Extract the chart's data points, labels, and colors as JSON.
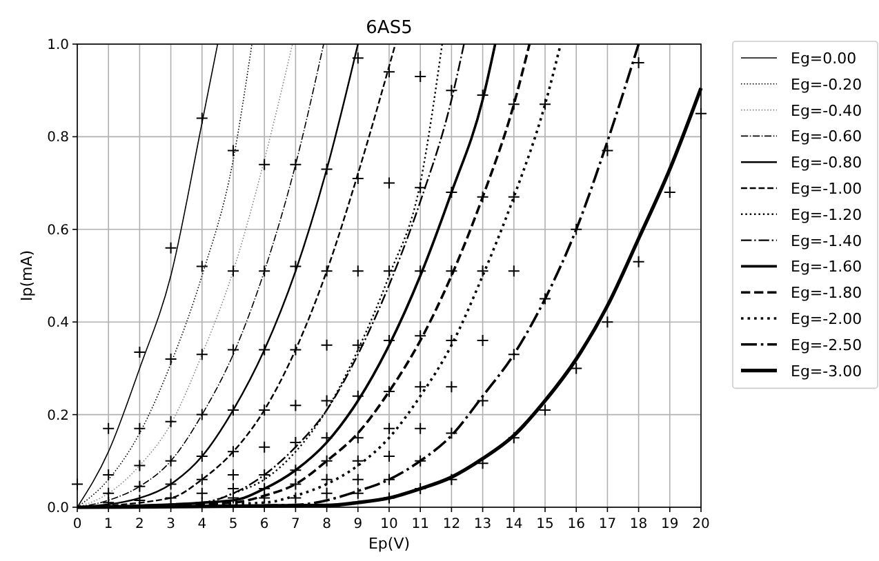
{
  "chart_data": {
    "type": "line",
    "title": "6AS5",
    "xlabel": "Ep(V)",
    "ylabel": "Ip(mA)",
    "xlim": [
      0,
      20
    ],
    "xticks": [
      0,
      1,
      2,
      3,
      4,
      5,
      6,
      7,
      8,
      9,
      10,
      11,
      12,
      13,
      14,
      15,
      16,
      17,
      18,
      19,
      20
    ],
    "ylim": [
      0,
      1
    ],
    "yticks": [
      {
        "value": 0,
        "label": "0.0"
      },
      {
        "value": 0.2,
        "label": "0.2"
      },
      {
        "value": 0.4,
        "label": "0.4"
      },
      {
        "value": 0.6,
        "label": "0.6"
      },
      {
        "value": 0.8,
        "label": "0.8"
      },
      {
        "value": 1,
        "label": "1.0"
      }
    ],
    "grid": true,
    "legend": "right",
    "marker": "none",
    "series": [
      {
        "name": "Eg=0.00",
        "color": "#000000",
        "line_style": "solid",
        "x": [
          0,
          1,
          2,
          3,
          4,
          4.5
        ],
        "values": [
          0,
          0.12,
          0.3,
          0.5,
          0.83,
          1
        ]
      },
      {
        "name": "Eg=-0.20",
        "color": "#000000",
        "line_style": "dotted",
        "x": [
          0,
          1,
          2,
          3,
          4,
          5,
          5.6
        ],
        "values": [
          0,
          0.06,
          0.16,
          0.31,
          0.5,
          0.75,
          1
        ]
      },
      {
        "name": "Eg=-0.40",
        "color": "#888888",
        "line_style": "dotted",
        "x": [
          0,
          1,
          2,
          3,
          4,
          5,
          6,
          6.9
        ],
        "values": [
          0,
          0.03,
          0.09,
          0.18,
          0.33,
          0.51,
          0.75,
          1
        ]
      },
      {
        "name": "Eg=-0.60",
        "color": "#000000",
        "line_style": "dashdot",
        "x": [
          0,
          1,
          2,
          3,
          4,
          5,
          6,
          7,
          7.9
        ],
        "values": [
          0,
          0.015,
          0.045,
          0.1,
          0.2,
          0.33,
          0.51,
          0.74,
          1
        ]
      },
      {
        "name": "Eg=-0.80",
        "color": "#000000",
        "line_style": "solid",
        "x": [
          0,
          2,
          3,
          4,
          5,
          6,
          7,
          8,
          9
        ],
        "values": [
          0,
          0.02,
          0.05,
          0.11,
          0.21,
          0.34,
          0.51,
          0.73,
          1
        ]
      },
      {
        "name": "Eg=-1.00",
        "color": "#000000",
        "line_style": "dashed",
        "x": [
          0,
          3,
          4,
          5,
          6,
          7,
          8,
          9,
          10.2
        ],
        "values": [
          0,
          0.02,
          0.06,
          0.12,
          0.21,
          0.34,
          0.51,
          0.72,
          1
        ]
      },
      {
        "name": "Eg=-1.20",
        "color": "#000000",
        "line_style": "dotted",
        "x": [
          0,
          4,
          5,
          6,
          7,
          8,
          9,
          10,
          11,
          11.7
        ],
        "values": [
          0,
          0.01,
          0.03,
          0.06,
          0.12,
          0.21,
          0.34,
          0.5,
          0.7,
          1
        ]
      },
      {
        "name": "Eg=-1.40",
        "color": "#000000",
        "line_style": "dashdot",
        "x": [
          0,
          4,
          5,
          6,
          7,
          8,
          9,
          10,
          11,
          12,
          12.4
        ],
        "values": [
          0,
          0.01,
          0.03,
          0.07,
          0.13,
          0.21,
          0.33,
          0.48,
          0.66,
          0.88,
          1
        ]
      },
      {
        "name": "Eg=-1.60",
        "color": "#000000",
        "line_style": "solid",
        "x": [
          0,
          5,
          6,
          7,
          8,
          9,
          10,
          11,
          12,
          13,
          13.4
        ],
        "values": [
          0,
          0.015,
          0.04,
          0.08,
          0.14,
          0.23,
          0.35,
          0.5,
          0.68,
          0.88,
          1
        ]
      },
      {
        "name": "Eg=-1.80",
        "color": "#000000",
        "line_style": "dashed",
        "x": [
          0,
          5,
          6,
          7,
          8,
          9,
          10,
          11,
          12,
          13,
          14,
          14.5
        ],
        "values": [
          0,
          0.01,
          0.025,
          0.05,
          0.1,
          0.16,
          0.25,
          0.36,
          0.5,
          0.67,
          0.87,
          1
        ]
      },
      {
        "name": "Eg=-2.00",
        "color": "#000000",
        "line_style": "dotted",
        "x": [
          0,
          6,
          7,
          8,
          9,
          10,
          11,
          12,
          13,
          14,
          15,
          15.5
        ],
        "values": [
          0,
          0.01,
          0.025,
          0.05,
          0.09,
          0.15,
          0.24,
          0.35,
          0.5,
          0.67,
          0.87,
          1
        ]
      },
      {
        "name": "Eg=-2.50",
        "color": "#000000",
        "line_style": "dashdot",
        "x": [
          0,
          7,
          8,
          9,
          10,
          11,
          12,
          13,
          14,
          15,
          16,
          17,
          18
        ],
        "values": [
          0,
          0.005,
          0.015,
          0.035,
          0.06,
          0.1,
          0.155,
          0.24,
          0.33,
          0.45,
          0.6,
          0.79,
          1
        ]
      },
      {
        "name": "Eg=-3.00",
        "color": "#000000",
        "line_style": "solid",
        "x": [
          0,
          8,
          9,
          10,
          11,
          12,
          13,
          14,
          15,
          16,
          17,
          18,
          19,
          20
        ],
        "values": [
          0,
          0.004,
          0.01,
          0.02,
          0.04,
          0.065,
          0.105,
          0.155,
          0.23,
          0.32,
          0.435,
          0.58,
          0.73,
          0.905
        ]
      },
      {
        "type": "scatter",
        "color": "#000000",
        "marker": "cross",
        "x": [
          0,
          1,
          1,
          1,
          1,
          2,
          2,
          2,
          2,
          2,
          3,
          3,
          3,
          3,
          3,
          3,
          4,
          4,
          4,
          4,
          4,
          4,
          4,
          4,
          5,
          5,
          5,
          5,
          5,
          5,
          5,
          5,
          6,
          6,
          6,
          6,
          6,
          6,
          6,
          6,
          7,
          7,
          7,
          7,
          7,
          7,
          7,
          7,
          8,
          8,
          8,
          8,
          8,
          8,
          8,
          8,
          9,
          9,
          9,
          9,
          9,
          9,
          9,
          9,
          9,
          10,
          10,
          10,
          10,
          10,
          10,
          10,
          10,
          10,
          11,
          11,
          11,
          11,
          11,
          11,
          11,
          11,
          12,
          12,
          12,
          12,
          12,
          12,
          12,
          13,
          13,
          13,
          13,
          13,
          13,
          14,
          14,
          14,
          14,
          14,
          15,
          15,
          15,
          16,
          16,
          17,
          17,
          18,
          18,
          19,
          20
        ],
        "values": [
          0.05,
          0.17,
          0.07,
          0.03,
          0.01,
          0.335,
          0.17,
          0.09,
          0.045,
          0.015,
          0.56,
          0.32,
          0.185,
          0.1,
          0.05,
          0.02,
          0.84,
          0.52,
          0.33,
          0.2,
          0.11,
          0.06,
          0.03,
          0.01,
          0.77,
          0.51,
          0.34,
          0.21,
          0.12,
          0.07,
          0.04,
          0.02,
          0.74,
          0.51,
          0.34,
          0.21,
          0.13,
          0.07,
          0.04,
          0.02,
          0.74,
          0.52,
          0.34,
          0.22,
          0.14,
          0.08,
          0.05,
          0.02,
          0.73,
          0.51,
          0.35,
          0.23,
          0.15,
          0.1,
          0.06,
          0.03,
          0.97,
          0.71,
          0.51,
          0.35,
          0.24,
          0.15,
          0.1,
          0.06,
          0.03,
          0.94,
          0.7,
          0.51,
          0.36,
          0.25,
          0.17,
          0.11,
          0.06,
          0.02,
          0.93,
          0.69,
          0.51,
          0.37,
          0.26,
          0.17,
          0.1,
          0.04,
          0.9,
          0.68,
          0.51,
          0.36,
          0.26,
          0.16,
          0.06,
          0.89,
          0.67,
          0.51,
          0.36,
          0.23,
          0.095,
          0.87,
          0.67,
          0.51,
          0.33,
          0.15,
          0.87,
          0.45,
          0.21,
          0.6,
          0.3,
          0.77,
          0.4,
          0.96,
          0.53,
          0.68,
          0.85
        ]
      }
    ]
  }
}
